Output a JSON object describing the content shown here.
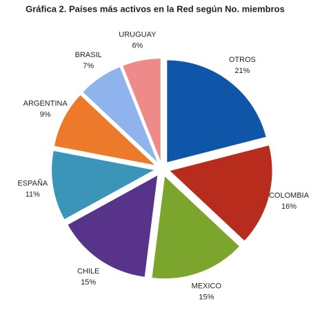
{
  "chart_data": {
    "type": "pie",
    "title": "Gráfica 2. Países más activos en la Red según No. miembros",
    "categories": [
      "OTROS",
      "COLOMBIA",
      "MEXICO",
      "CHILE",
      "ESPAÑA",
      "ARGENTINA",
      "BRASIL",
      "URUGUAY"
    ],
    "values": [
      21,
      16,
      15,
      15,
      11,
      9,
      7,
      6
    ],
    "value_labels": [
      "21%",
      "16%",
      "15%",
      "15%",
      "11%",
      "9%",
      "7%",
      "6%"
    ],
    "colors": [
      "#0f56a8",
      "#b82c1e",
      "#7ba52c",
      "#57338a",
      "#3a95b8",
      "#ec7a2a",
      "#8fb3ec",
      "#ee8a8a"
    ]
  }
}
